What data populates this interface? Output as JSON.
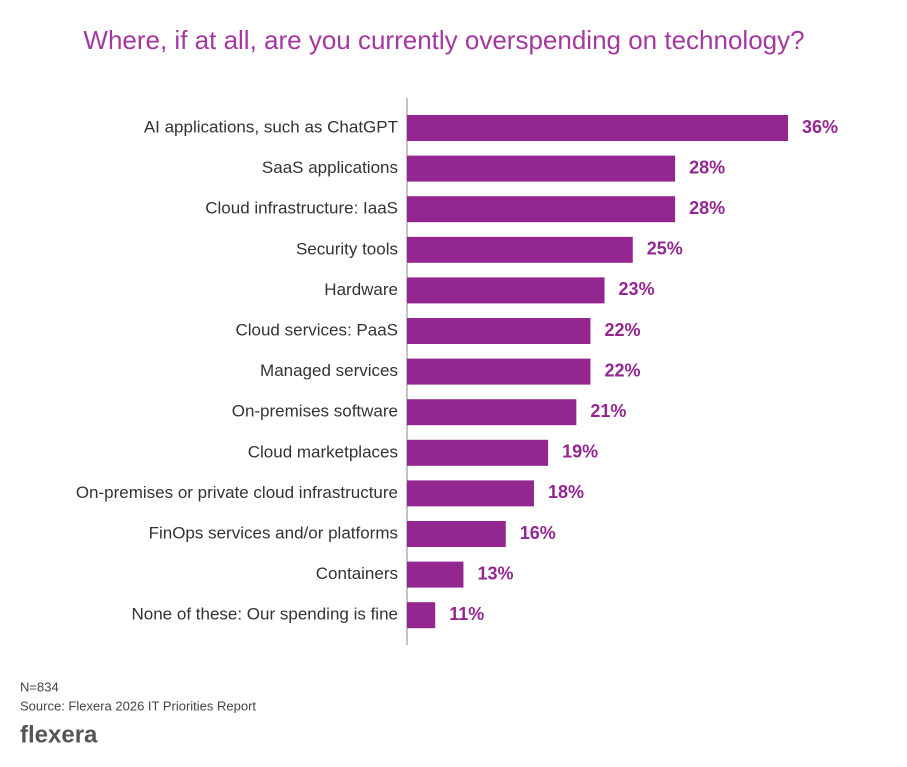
{
  "chart_data": {
    "type": "hbar",
    "title": "Where, if at all, are you currently overspending on technology?",
    "categories": [
      "AI applications, such as ChatGPT",
      "SaaS applications",
      "Cloud infrastructure: IaaS",
      "Security tools",
      "Hardware",
      "Cloud services: PaaS",
      "Managed services",
      "On-premises software",
      "Cloud marketplaces",
      "On-premises or private cloud infrastructure",
      "FinOps services and/or platforms",
      "Containers",
      "None of these: Our spending is fine"
    ],
    "values": [
      36,
      28,
      28,
      25,
      23,
      22,
      22,
      21,
      19,
      18,
      16,
      13,
      11
    ],
    "value_labels": [
      "36%",
      "28%",
      "28%",
      "25%",
      "23%",
      "22%",
      "22%",
      "21%",
      "19%",
      "18%",
      "16%",
      "13%",
      "11%"
    ],
    "color": "#93278f",
    "xlim": [
      9,
      36
    ]
  },
  "footer": {
    "sample": "N=834",
    "source": "Source: Flexera 2026 IT Priorities Report",
    "logo": "flexera"
  }
}
